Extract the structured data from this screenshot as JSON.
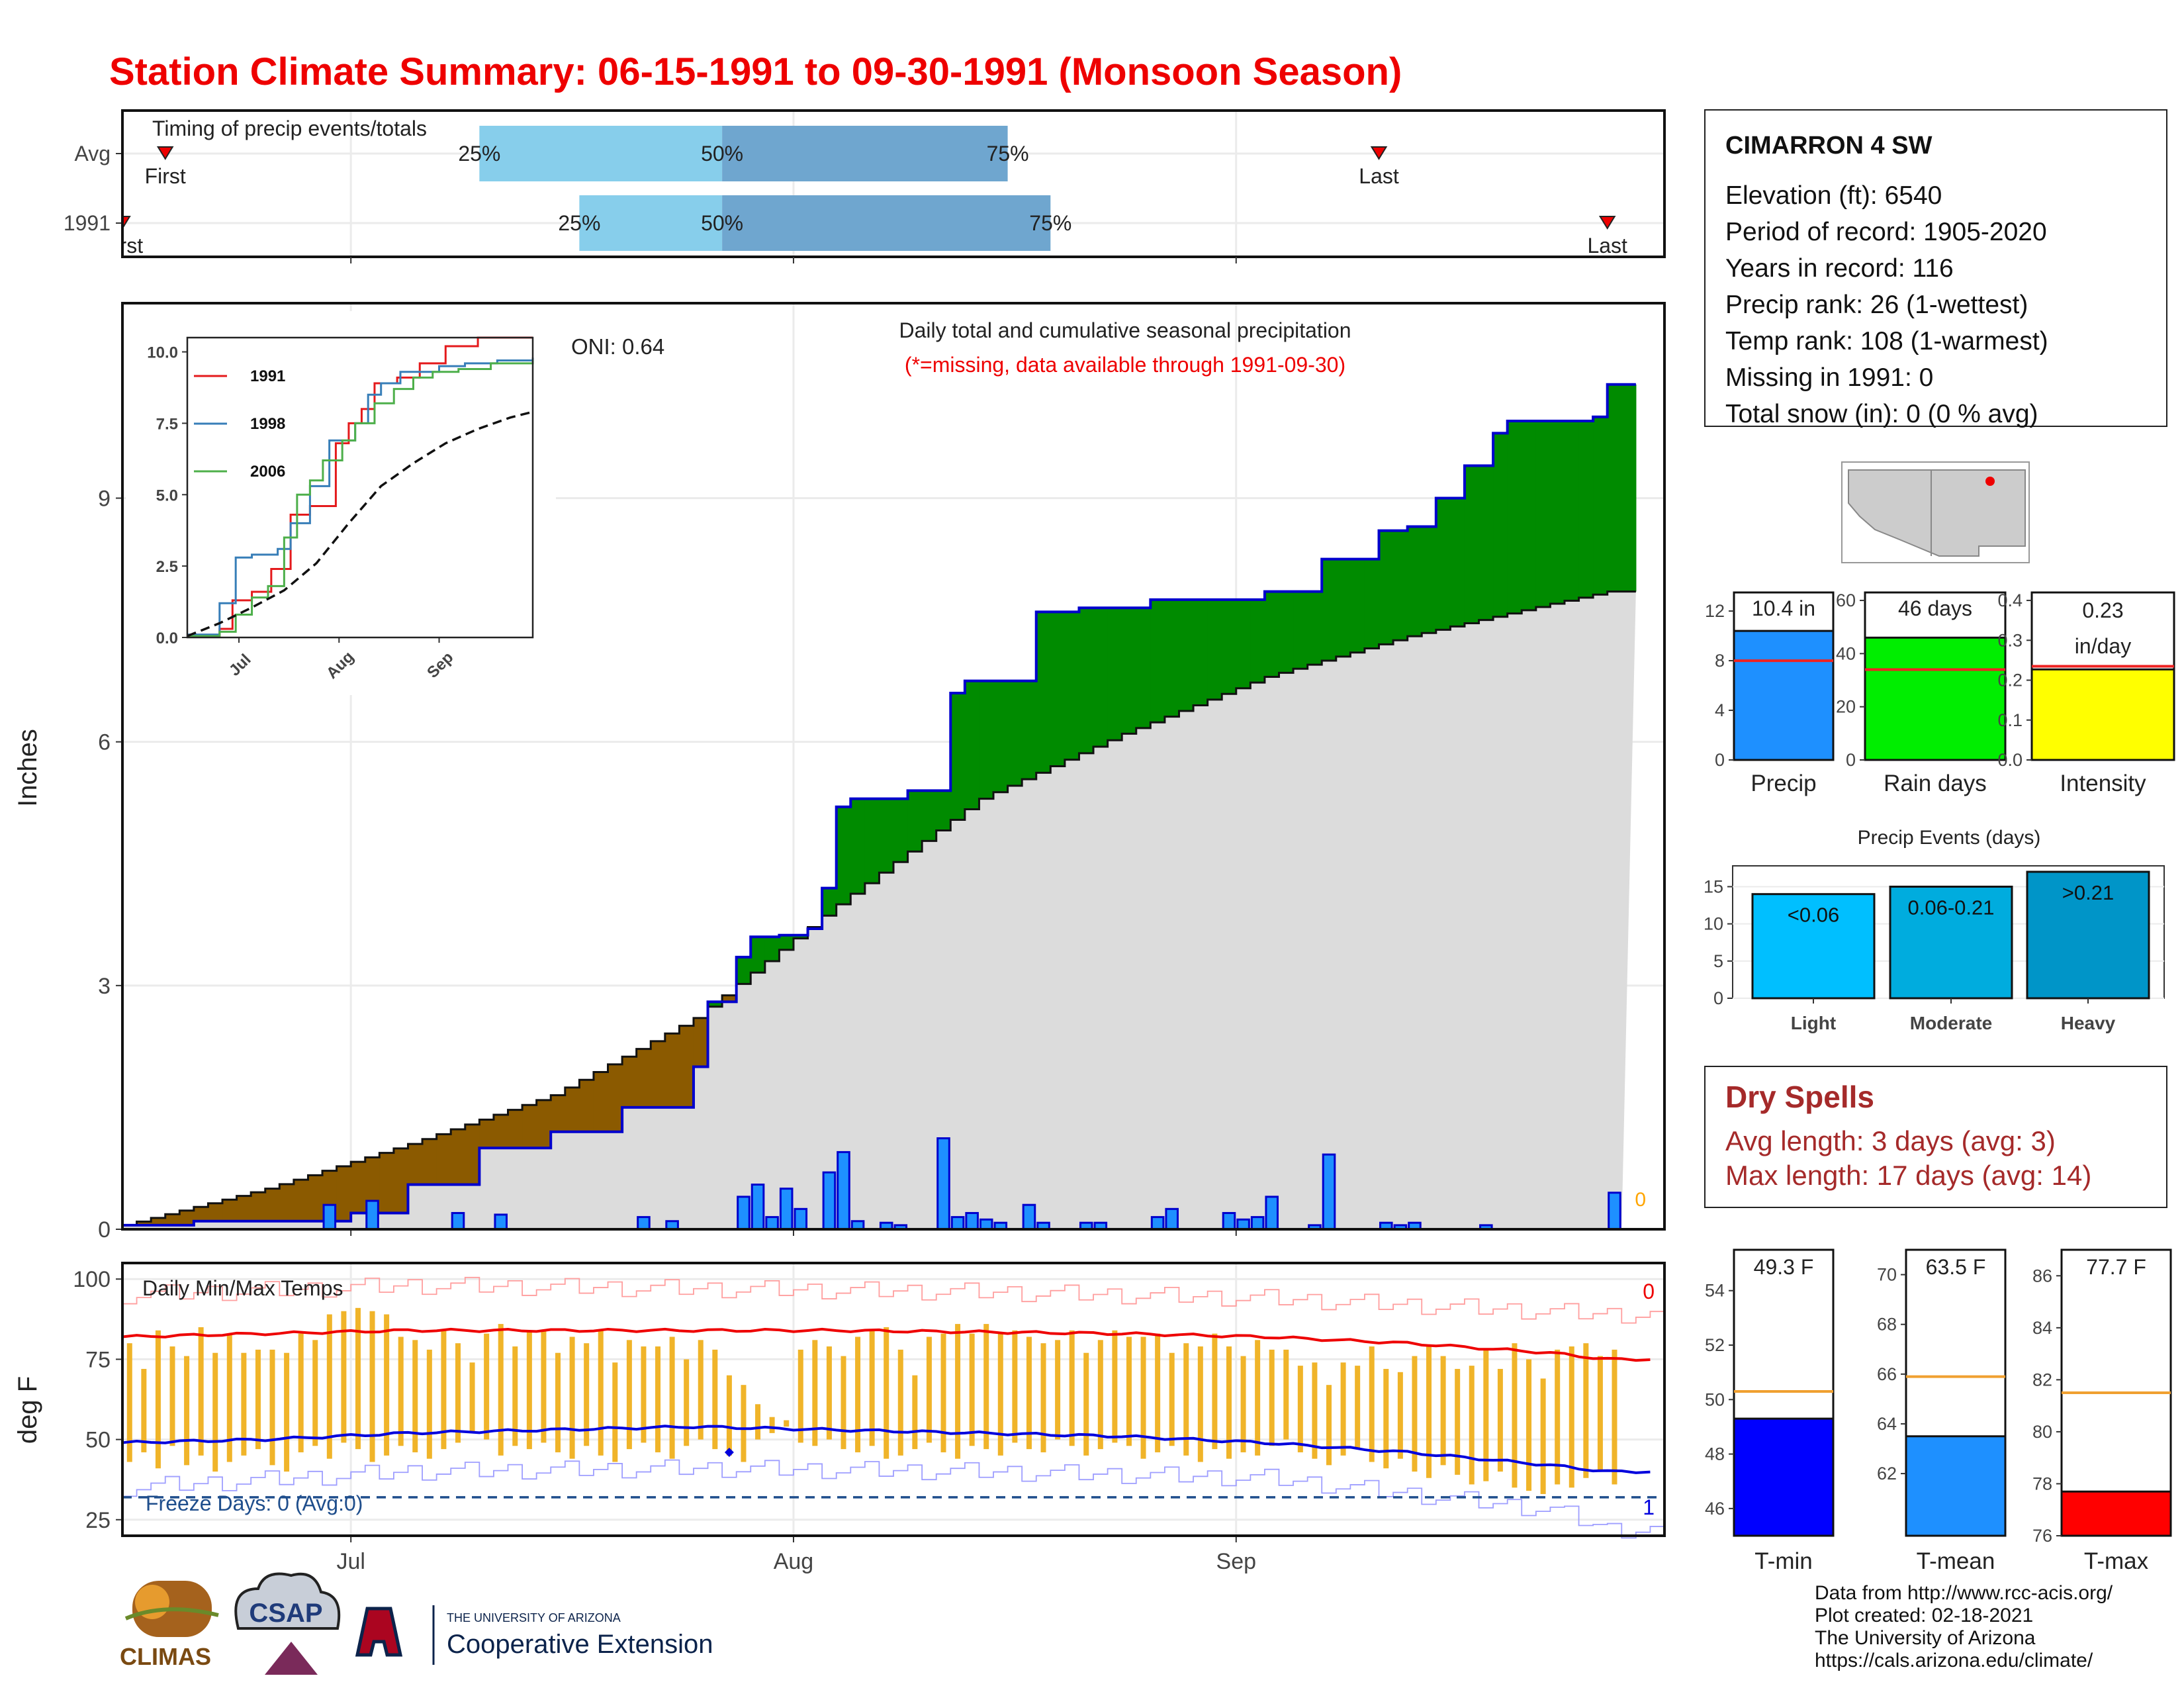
{
  "title": "Station Climate Summary: 06-15-1991 to 09-30-1991 (Monsoon Season)",
  "timing": {
    "title": "Timing of precip events/totals",
    "rows": [
      {
        "label": "Avg",
        "first_label": "First",
        "last_label": "Last",
        "first": 3,
        "last": 88,
        "p25": 25,
        "p50": 42,
        "p75": 62
      },
      {
        "label": "1991",
        "first_label": "First",
        "last_label": "Last",
        "first": 0,
        "last": 104,
        "p25": 32,
        "p50": 42,
        "p75": 65
      }
    ],
    "pct_labels": [
      "25%",
      "50%",
      "75%"
    ]
  },
  "main_panel": {
    "ylabel": "Inches",
    "yticks": [
      0,
      3,
      6,
      9
    ],
    "ymax": 11.4,
    "xticks": [
      {
        "label": "Jul",
        "day": 16
      },
      {
        "label": "Aug",
        "day": 47
      },
      {
        "label": "Sep",
        "day": 78
      }
    ],
    "oni": "ONI: 0.64",
    "legend_title": "Daily total and cumulative seasonal precipitation",
    "missing_note": "(*=missing, data available through 1991-09-30)",
    "missing_count": "0"
  },
  "inset": {
    "yticks": [
      "0.0",
      "2.5",
      "5.0",
      "7.5",
      "10.0"
    ],
    "xticks": [
      "Jul",
      "Aug",
      "Sep"
    ],
    "series": [
      {
        "name": "1991",
        "color": "#e41a1c"
      },
      {
        "name": "1998",
        "color": "#377eb8"
      },
      {
        "name": "2006",
        "color": "#4daf4a"
      }
    ]
  },
  "temps": {
    "title": "Daily Min/Max Temps",
    "ylabel": "deg F",
    "yticks": [
      25,
      50,
      75,
      100
    ],
    "freeze_text": "Freeze Days: 0 (Avg:0)",
    "count_top": "0",
    "count_bottom": "1"
  },
  "station": {
    "name": "CIMARRON 4 SW",
    "rows": [
      "Elevation (ft): 6540",
      "Period of record: 1905-2020",
      "Years in record: 116",
      "Precip rank: 26 (1-wettest)",
      "Temp rank: 108 (1-warmest)",
      "Missing in 1991: 0",
      "Total snow (in): 0 (0 % avg)"
    ]
  },
  "summary_bars": [
    {
      "name": "precip",
      "label": "Precip",
      "text": [
        "10.4 in"
      ],
      "value": 10.4,
      "avg": 8.0,
      "ymax": 13.5,
      "yticks": [
        0,
        4,
        8,
        12
      ],
      "color": "#1e90ff"
    },
    {
      "name": "rain-days",
      "label": "Rain days",
      "text": [
        "46 days"
      ],
      "value": 46,
      "avg": 34,
      "ymax": 63,
      "yticks": [
        0,
        20,
        40,
        60
      ],
      "color": "#00ee00"
    },
    {
      "name": "intensity",
      "label": "Intensity",
      "text": [
        "0.23",
        "in/day"
      ],
      "value": 0.227,
      "avg": 0.235,
      "ymax": 0.42,
      "yticks": [
        "0.0",
        "0.1",
        "0.2",
        "0.3",
        "0.4"
      ],
      "color": "#ffff00"
    }
  ],
  "precip_events": {
    "title": "Precip Events (days)",
    "yticks": [
      0,
      5,
      10,
      15
    ],
    "bars": [
      {
        "label": "Light",
        "text": "<0.06",
        "value": 14
      },
      {
        "label": "Moderate",
        "text": "0.06-0.21",
        "value": 15
      },
      {
        "label": "Heavy",
        "text": ">0.21",
        "value": 17
      }
    ],
    "colors": [
      "#00bfff",
      "#00acde",
      "#0095c8"
    ]
  },
  "dry_spells": {
    "title": "Dry Spells",
    "rows": [
      "Avg length: 3 days (avg: 3)",
      "Max length: 17 days (avg: 14)"
    ]
  },
  "temp_bars": [
    {
      "name": "tmin",
      "label": "T-min",
      "text": "49.3 F",
      "value": 49.3,
      "avg": 50.3,
      "ymin": 45,
      "ymax": 55.5,
      "yticks": [
        46,
        48,
        50,
        52,
        54
      ],
      "color": "#0000ff"
    },
    {
      "name": "tmean",
      "label": "T-mean",
      "text": "63.5 F",
      "value": 63.5,
      "avg": 65.9,
      "ymin": 59.5,
      "ymax": 71,
      "yticks": [
        62,
        64,
        66,
        68,
        70
      ],
      "color": "#1e90ff"
    },
    {
      "name": "tmax",
      "label": "T-max",
      "text": "77.7 F",
      "value": 77.7,
      "avg": 81.5,
      "ymin": 76,
      "ymax": 87,
      "yticks": [
        76,
        78,
        80,
        82,
        84,
        86
      ],
      "color": "#ff0000"
    }
  ],
  "credits": [
    "Data from http://www.rcc-acis.org/",
    "Plot created: 02-18-2021",
    "The University of Arizona",
    "https://cals.arizona.edu/climate/"
  ],
  "logos": {
    "climas": "CLIMAS",
    "csap": "CSAP",
    "ua_small": "THE UNIVERSITY OF ARIZONA",
    "ua_big": "Cooperative Extension"
  },
  "chart_data": [
    {
      "type": "area",
      "title": "Daily total and cumulative seasonal precipitation",
      "ylabel": "Inches",
      "ylim": [
        0,
        11.4
      ],
      "x_unit": "day of season starting 06-15-1991",
      "series": [
        {
          "name": "1991 cumulative",
          "x": [
            0,
            5,
            16,
            20,
            25,
            30,
            35,
            40,
            41,
            43,
            44,
            46,
            48,
            49,
            50,
            51,
            55,
            58,
            59,
            64,
            67,
            72,
            80,
            84,
            88,
            90,
            92,
            94,
            96,
            97,
            100,
            103,
            104
          ],
          "values": [
            0.05,
            0.1,
            0.2,
            0.55,
            1.0,
            1.2,
            1.5,
            2.0,
            2.8,
            3.35,
            3.6,
            3.62,
            3.7,
            4.2,
            5.2,
            5.3,
            5.4,
            6.6,
            6.75,
            7.6,
            7.65,
            7.75,
            7.85,
            8.25,
            8.6,
            8.65,
            9.0,
            9.4,
            9.8,
            9.95,
            9.95,
            10.0,
            10.4
          ]
        },
        {
          "name": "Average cumulative",
          "x": [
            0,
            10,
            20,
            30,
            40,
            50,
            60,
            70,
            80,
            90,
            100,
            104
          ],
          "values": [
            0.05,
            0.5,
            1.05,
            1.65,
            2.6,
            4.0,
            5.3,
            6.1,
            6.8,
            7.3,
            7.7,
            7.85
          ]
        }
      ],
      "daily_precip": {
        "days": [
          14,
          17,
          23,
          26,
          36,
          38,
          43,
          44,
          45,
          46,
          47,
          49,
          50,
          51,
          53,
          54,
          57,
          58,
          59,
          60,
          61,
          63,
          64,
          67,
          68,
          72,
          73,
          77,
          78,
          79,
          80,
          83,
          84,
          88,
          89,
          90,
          95,
          104
        ],
        "values": [
          0.3,
          0.35,
          0.2,
          0.18,
          0.15,
          0.1,
          0.4,
          0.55,
          0.15,
          0.5,
          0.25,
          0.7,
          0.95,
          0.1,
          0.08,
          0.05,
          1.12,
          0.15,
          0.2,
          0.12,
          0.08,
          0.3,
          0.08,
          0.08,
          0.08,
          0.15,
          0.25,
          0.2,
          0.12,
          0.15,
          0.4,
          0.05,
          0.92,
          0.08,
          0.05,
          0.08,
          0.05,
          0.45
        ]
      }
    },
    {
      "type": "line",
      "title": "",
      "x_unit": "day of season starting 06-15-1991",
      "xticks": [
        "Jul",
        "Aug",
        "Sep"
      ],
      "ylim": [
        0,
        10.5
      ],
      "series": [
        {
          "name": "1991",
          "x": [
            0,
            10,
            14,
            20,
            26,
            32,
            38,
            46,
            50,
            54,
            58,
            65,
            72,
            80,
            90,
            100,
            107
          ],
          "values": [
            0.05,
            0.3,
            1.3,
            1.6,
            2.4,
            4.3,
            4.6,
            6.8,
            7.5,
            8.0,
            8.9,
            9.1,
            9.6,
            10.2,
            10.5,
            10.5,
            10.5
          ]
        },
        {
          "name": "1998",
          "x": [
            0,
            10,
            15,
            20,
            28,
            32,
            38,
            44,
            52,
            56,
            60,
            66,
            72,
            78,
            86,
            96,
            107
          ],
          "values": [
            0.1,
            1.2,
            2.8,
            2.9,
            3.1,
            4.0,
            5.3,
            6.9,
            7.5,
            8.5,
            8.9,
            9.3,
            9.3,
            9.5,
            9.6,
            9.7,
            9.8
          ]
        },
        {
          "name": "2006",
          "x": [
            0,
            10,
            15,
            20,
            25,
            30,
            34,
            38,
            42,
            48,
            52,
            58,
            64,
            70,
            76,
            84,
            94,
            107
          ],
          "values": [
            0.05,
            0.2,
            0.8,
            1.4,
            1.8,
            3.5,
            5.0,
            5.5,
            6.2,
            6.9,
            7.5,
            8.2,
            8.7,
            9.1,
            9.3,
            9.4,
            9.6,
            9.7
          ]
        },
        {
          "name": "Average",
          "x": [
            0,
            10,
            20,
            30,
            40,
            50,
            60,
            70,
            80,
            90,
            100,
            107
          ],
          "values": [
            0.05,
            0.5,
            1.05,
            1.65,
            2.6,
            4.0,
            5.3,
            6.1,
            6.8,
            7.3,
            7.7,
            7.9
          ]
        }
      ]
    },
    {
      "type": "bar",
      "title": "Daily Min/Max Temps",
      "ylabel": "deg F",
      "ylim": [
        20,
        105
      ],
      "x_unit": "day of season starting 06-15-1991",
      "daily_min": [
        43,
        46,
        41,
        48,
        42,
        45,
        40,
        43,
        45,
        47,
        42,
        40,
        46,
        48,
        44,
        49,
        47,
        43,
        45,
        48,
        46,
        44,
        47,
        49,
        52,
        50,
        45,
        48,
        47,
        49,
        46,
        44,
        48,
        45,
        43,
        47,
        49,
        46,
        44,
        48,
        50,
        47,
        45,
        43,
        50,
        52,
        54,
        49,
        48,
        50,
        47,
        46,
        48,
        44,
        45,
        47,
        49,
        46,
        44,
        48,
        47,
        45,
        49,
        47,
        46,
        50,
        48,
        45,
        47,
        49,
        48,
        44,
        46,
        48,
        45,
        43,
        47,
        44,
        46,
        45,
        48,
        50,
        46,
        44,
        42,
        45,
        47,
        43,
        41,
        44,
        40,
        38,
        42,
        39,
        36,
        37,
        40,
        35,
        34,
        33,
        36,
        35,
        38,
        40,
        36
      ],
      "daily_max": [
        80,
        72,
        84,
        79,
        76,
        85,
        77,
        83,
        77,
        78,
        78,
        77,
        83,
        81,
        89,
        90,
        91,
        90,
        89,
        82,
        81,
        78,
        84,
        80,
        74,
        83,
        86,
        79,
        84,
        84,
        77,
        82,
        80,
        84,
        74,
        81,
        79,
        79,
        82,
        75,
        81,
        78,
        70,
        67,
        61,
        57,
        56,
        78,
        81,
        79,
        76,
        82,
        84,
        85,
        78,
        70,
        82,
        83,
        86,
        83,
        86,
        83,
        84,
        82,
        80,
        81,
        84,
        77,
        81,
        84,
        82,
        82,
        83,
        77,
        80,
        79,
        83,
        79,
        76,
        81,
        78,
        78,
        73,
        74,
        67,
        74,
        73,
        79,
        72,
        71,
        76,
        79,
        76,
        72,
        73,
        78,
        72,
        80,
        75,
        69,
        78,
        79,
        80,
        76,
        78
      ],
      "series": [
        {
          "name": "Avg max",
          "x": [
            0,
            10,
            20,
            30,
            40,
            50,
            60,
            70,
            80,
            90,
            100,
            104
          ],
          "values": [
            82,
            83,
            84,
            84,
            84,
            84,
            83.5,
            83,
            82,
            80,
            77,
            75
          ]
        },
        {
          "name": "Avg min",
          "x": [
            0,
            10,
            20,
            30,
            40,
            50,
            60,
            70,
            80,
            90,
            100,
            104
          ],
          "values": [
            49,
            50,
            52,
            53,
            54,
            53,
            52,
            51,
            49,
            46,
            42,
            40
          ]
        },
        {
          "name": "Record max",
          "x": [
            0,
            20,
            40,
            60,
            80,
            104
          ],
          "values": [
            95,
            98,
            97,
            96,
            94,
            89
          ]
        },
        {
          "name": "Record min",
          "x": [
            0,
            20,
            40,
            60,
            80,
            90,
            100,
            104
          ],
          "values": [
            35,
            40,
            41,
            40,
            38,
            33,
            28,
            22
          ]
        }
      ],
      "freeze_line": 32
    }
  ]
}
